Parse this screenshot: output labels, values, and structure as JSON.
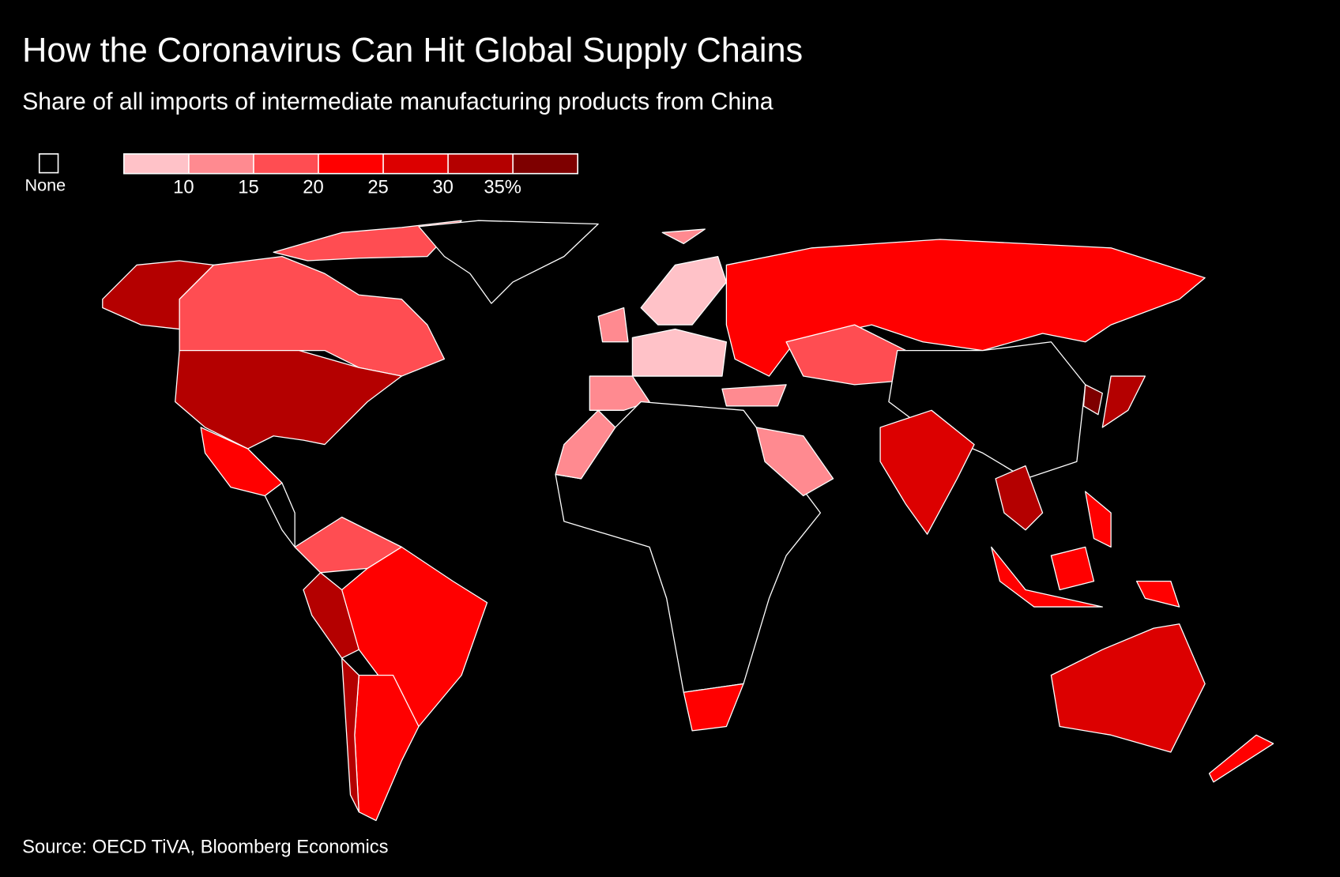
{
  "chart_data": {
    "type": "choropleth",
    "title": "How the Coronavirus Can Hit Global Supply Chains",
    "subtitle": "Share of all imports of intermediate manufacturing products from China",
    "legend": {
      "none_label": "None",
      "colors": [
        "#ffc2c8",
        "#ff8a90",
        "#ff4d52",
        "#ff0000",
        "#dc0000",
        "#b40000",
        "#7e0000"
      ],
      "lim": [
        5,
        40
      ],
      "ticks": [
        10,
        15,
        20,
        25,
        30,
        {
          "value": 35,
          "label": "35%"
        }
      ]
    },
    "source": "Source: OECD TiVA, Bloomberg Economics"
  }
}
